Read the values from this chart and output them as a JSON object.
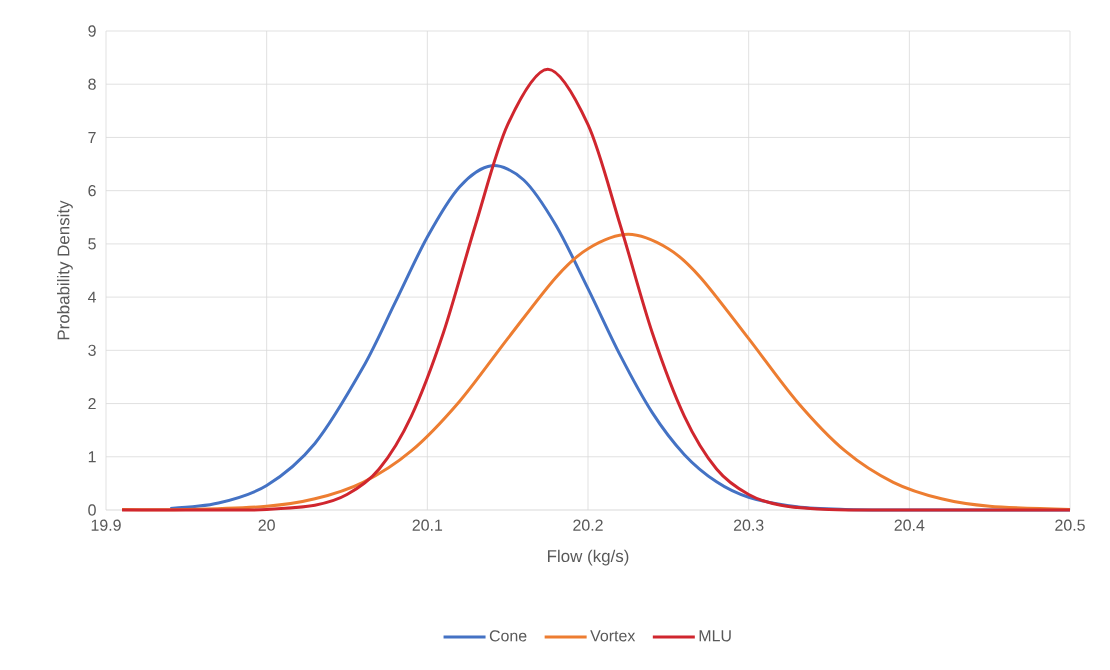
{
  "chart_data": {
    "type": "line",
    "xlabel": "Flow (kg/s)",
    "ylabel": "Probability Density",
    "xlim": [
      19.9,
      20.5
    ],
    "xticks": [
      19.9,
      20,
      20.1,
      20.2,
      20.3,
      20.4,
      20.5
    ],
    "ylim": [
      0,
      9
    ],
    "yticks": [
      0,
      1,
      2,
      3,
      4,
      5,
      6,
      7,
      8,
      9
    ],
    "grid": true,
    "legend": "bottom",
    "marker": "none",
    "line_style": "solid",
    "series": [
      {
        "name": "Cone",
        "color": "#4472c4",
        "x": [
          19.94,
          19.97,
          20.0,
          20.03,
          20.06,
          20.08,
          20.1,
          20.12,
          20.14,
          20.16,
          20.18,
          20.2,
          20.22,
          20.24,
          20.26,
          20.28,
          20.3,
          20.33,
          20.36,
          20.4,
          20.5
        ],
        "values": [
          0.03,
          0.13,
          0.46,
          1.25,
          2.68,
          3.9,
          5.13,
          6.07,
          6.47,
          6.2,
          5.35,
          4.16,
          2.91,
          1.83,
          1.04,
          0.53,
          0.24,
          0.06,
          0.01,
          0,
          0
        ]
      },
      {
        "name": "Vortex",
        "color": "#ed7d31",
        "x": [
          19.91,
          19.95,
          20.0,
          20.03,
          20.06,
          20.09,
          20.12,
          20.15,
          20.18,
          20.2,
          20.225,
          20.25,
          20.27,
          20.3,
          20.33,
          20.36,
          20.39,
          20.42,
          20.45,
          20.5
        ],
        "values": [
          0.01,
          0.01,
          0.07,
          0.21,
          0.52,
          1.11,
          2.04,
          3.22,
          4.37,
          4.91,
          5.18,
          4.91,
          4.37,
          3.22,
          2.04,
          1.11,
          0.52,
          0.21,
          0.07,
          0.01
        ]
      },
      {
        "name": "MLU",
        "color": "#d0262e",
        "x": [
          19.91,
          19.98,
          20.0,
          20.03,
          20.05,
          20.07,
          20.09,
          20.11,
          20.13,
          20.15,
          20.175,
          20.2,
          20.22,
          20.24,
          20.26,
          20.28,
          20.3,
          20.32,
          20.35,
          20.4,
          20.5
        ],
        "values": [
          0,
          0,
          0.01,
          0.09,
          0.29,
          0.77,
          1.76,
          3.33,
          5.36,
          7.24,
          8.28,
          7.24,
          5.36,
          3.33,
          1.76,
          0.77,
          0.29,
          0.09,
          0.01,
          0,
          0
        ]
      }
    ]
  }
}
